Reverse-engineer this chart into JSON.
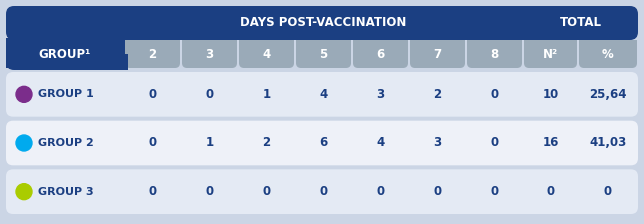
{
  "header_top_left": "GROUP¹",
  "header_mid": "DAYS POST-VACCINATION",
  "header_total": "TOTAL",
  "col_headers": [
    "2",
    "3",
    "4",
    "5",
    "6",
    "7",
    "8",
    "N²",
    "%"
  ],
  "groups": [
    "GROUP 1",
    "GROUP 2",
    "GROUP 3"
  ],
  "group_colors": [
    "#7B2D8B",
    "#00AAEE",
    "#AACC00"
  ],
  "data": [
    [
      "0",
      "0",
      "1",
      "4",
      "3",
      "2",
      "0",
      "10",
      "25,64"
    ],
    [
      "0",
      "1",
      "2",
      "6",
      "4",
      "3",
      "0",
      "16",
      "41,03"
    ],
    [
      "0",
      "0",
      "0",
      "0",
      "0",
      "0",
      "0",
      "0",
      "0"
    ]
  ],
  "header_bg": "#1B3F82",
  "header_text_color": "#FFFFFF",
  "col_header_bg": "#9AAAB8",
  "col_header_text": "#FFFFFF",
  "row_bg_1": "#E4EAF4",
  "row_bg_2": "#EEF1F8",
  "cell_text_color": "#1B3F82",
  "outer_bg": "#CBD5E5",
  "figw": 6.44,
  "figh": 2.24,
  "dpi": 100
}
